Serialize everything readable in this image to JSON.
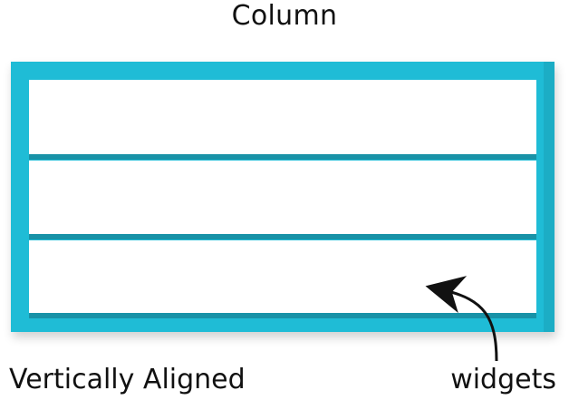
{
  "title": "Column",
  "captions": {
    "left": "Vertically Aligned",
    "right": "widgets"
  },
  "colors": {
    "column_fill": "#1FBCD6",
    "widget_fill": "#FFFFFF",
    "text": "#111111",
    "arrow": "#111111"
  }
}
